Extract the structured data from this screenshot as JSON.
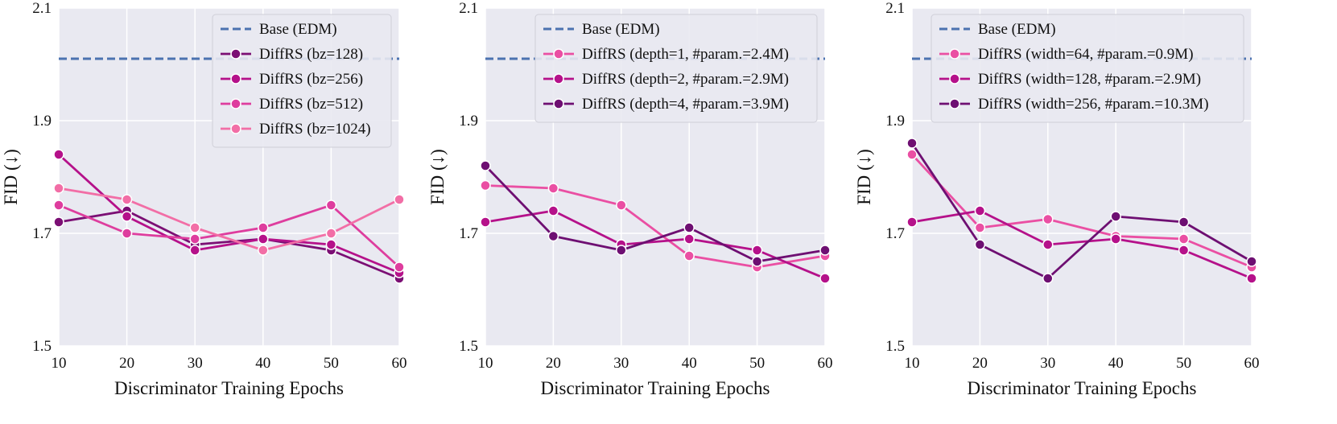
{
  "chart_data": [
    {
      "type": "line",
      "xlabel": "Discriminator Training Epochs",
      "ylabel": "FID (↓)",
      "xlim": [
        10,
        60
      ],
      "ylim": [
        1.5,
        2.1
      ],
      "xticks": [
        "10",
        "20",
        "30",
        "40",
        "50",
        "60"
      ],
      "yticks": [
        "1.5",
        "1.7",
        "1.9",
        "2.1"
      ],
      "legend_position": "top-right",
      "baseline": {
        "name": "Base (EDM)",
        "value": 2.01,
        "color": "#4c72b0",
        "style": "dashed"
      },
      "x": [
        10,
        20,
        30,
        40,
        50,
        60
      ],
      "series": [
        {
          "name": "DiffRS (bz=128)",
          "color": "#7b0f74",
          "values": [
            1.72,
            1.74,
            1.68,
            1.69,
            1.67,
            1.62
          ]
        },
        {
          "name": "DiffRS (bz=256)",
          "color": "#b5118a",
          "values": [
            1.84,
            1.73,
            1.67,
            1.69,
            1.68,
            1.63
          ]
        },
        {
          "name": "DiffRS (bz=512)",
          "color": "#de3d9e",
          "values": [
            1.75,
            1.7,
            1.69,
            1.71,
            1.75,
            1.64
          ]
        },
        {
          "name": "DiffRS (bz=1024)",
          "color": "#f26ea6",
          "values": [
            1.78,
            1.76,
            1.71,
            1.67,
            1.7,
            1.76
          ]
        }
      ]
    },
    {
      "type": "line",
      "xlabel": "Discriminator Training Epochs",
      "ylabel": "FID (↓)",
      "xlim": [
        10,
        60
      ],
      "ylim": [
        1.5,
        2.1
      ],
      "xticks": [
        "10",
        "20",
        "30",
        "40",
        "50",
        "60"
      ],
      "yticks": [
        "1.5",
        "1.7",
        "1.9",
        "2.1"
      ],
      "legend_position": "top-right",
      "baseline": {
        "name": "Base (EDM)",
        "value": 2.01,
        "color": "#4c72b0",
        "style": "dashed"
      },
      "x": [
        10,
        20,
        30,
        40,
        50,
        60
      ],
      "series": [
        {
          "name": "DiffRS (depth=1, #param.=2.4M)",
          "color": "#ea4fa3",
          "values": [
            1.785,
            1.78,
            1.75,
            1.66,
            1.64,
            1.66
          ]
        },
        {
          "name": "DiffRS (depth=2, #param.=2.9M)",
          "color": "#b5118a",
          "values": [
            1.72,
            1.74,
            1.68,
            1.69,
            1.67,
            1.62
          ]
        },
        {
          "name": "DiffRS (depth=4, #param.=3.9M)",
          "color": "#6e0f72",
          "values": [
            1.82,
            1.695,
            1.67,
            1.71,
            1.65,
            1.67
          ]
        }
      ]
    },
    {
      "type": "line",
      "xlabel": "Discriminator Training Epochs",
      "ylabel": "FID (↓)",
      "xlim": [
        10,
        60
      ],
      "ylim": [
        1.5,
        2.1
      ],
      "xticks": [
        "10",
        "20",
        "30",
        "40",
        "50",
        "60"
      ],
      "yticks": [
        "1.5",
        "1.7",
        "1.9",
        "2.1"
      ],
      "legend_position": "top-right",
      "baseline": {
        "name": "Base (EDM)",
        "value": 2.01,
        "color": "#4c72b0",
        "style": "dashed"
      },
      "x": [
        10,
        20,
        30,
        40,
        50,
        60
      ],
      "series": [
        {
          "name": "DiffRS (width=64, #param.=0.9M)",
          "color": "#ea4fa3",
          "values": [
            1.84,
            1.71,
            1.725,
            1.695,
            1.69,
            1.64
          ]
        },
        {
          "name": "DiffRS (width=128, #param.=2.9M)",
          "color": "#b5118a",
          "values": [
            1.72,
            1.74,
            1.68,
            1.69,
            1.67,
            1.62
          ]
        },
        {
          "name": "DiffRS (width=256, #param.=10.3M)",
          "color": "#6e0f72",
          "values": [
            1.86,
            1.68,
            1.62,
            1.73,
            1.72,
            1.65
          ]
        }
      ]
    }
  ]
}
